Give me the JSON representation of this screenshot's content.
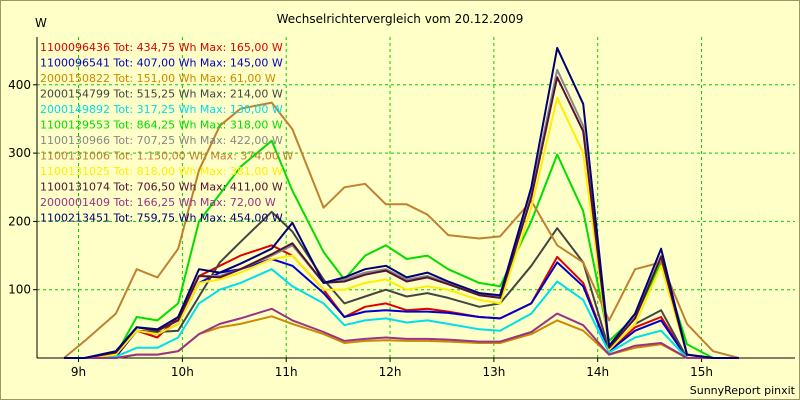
{
  "colors": {
    "background": "#ffffc8",
    "plot_background": "#ffffc8",
    "grid": "#00cc00",
    "axis": "#000000"
  },
  "chart_data": {
    "type": "line",
    "title": "Wechselrichtervergleich vom 20.12.2009",
    "ylabel": "W",
    "xlabel": "",
    "footer": "SunnyReport pinxit",
    "grid": true,
    "legend_placement": "top-left",
    "xlim": [
      8.6,
      15.9
    ],
    "ylim": [
      0,
      470
    ],
    "x_ticks": [
      {
        "value": 9,
        "label": "9h"
      },
      {
        "value": 10,
        "label": "10h"
      },
      {
        "value": 11,
        "label": "11h"
      },
      {
        "value": 12,
        "label": "12h"
      },
      {
        "value": 13,
        "label": "13h"
      },
      {
        "value": 14,
        "label": "14h"
      },
      {
        "value": 15,
        "label": "15h"
      }
    ],
    "y_ticks": [
      {
        "value": 100,
        "label": "100"
      },
      {
        "value": 200,
        "label": "200"
      },
      {
        "value": 300,
        "label": "300"
      },
      {
        "value": 400,
        "label": "400"
      }
    ],
    "x": [
      8.86,
      9.06,
      9.36,
      9.56,
      9.76,
      9.96,
      10.16,
      10.36,
      10.56,
      10.86,
      11.06,
      11.36,
      11.56,
      11.76,
      11.96,
      12.16,
      12.36,
      12.56,
      12.86,
      13.06,
      13.36,
      13.61,
      13.86,
      14.11,
      14.36,
      14.61,
      14.86,
      15.11,
      15.36
    ],
    "series": [
      {
        "name": "1100096436 Tot: 434,75 Wh Max: 165,00 W",
        "color": "#dd0000",
        "values": [
          0,
          0,
          2,
          40,
          30,
          60,
          120,
          135,
          150,
          165,
          150,
          100,
          60,
          75,
          80,
          70,
          72,
          68,
          60,
          58,
          80,
          148,
          110,
          10,
          45,
          60,
          0,
          0,
          0
        ]
      },
      {
        "name": "1100096541 Tot: 407,00 Wh Max: 145,00 W",
        "color": "#0000cc",
        "values": [
          0,
          0,
          2,
          40,
          35,
          50,
          110,
          125,
          130,
          145,
          135,
          95,
          60,
          68,
          70,
          68,
          68,
          66,
          60,
          58,
          80,
          140,
          105,
          10,
          40,
          55,
          0,
          0,
          0
        ]
      },
      {
        "name": "2000150822 Tot: 151,00 Wh Max: 61,00 W",
        "color": "#cc8800",
        "values": [
          0,
          0,
          0,
          5,
          5,
          10,
          35,
          45,
          50,
          61,
          50,
          35,
          22,
          25,
          26,
          25,
          25,
          24,
          22,
          22,
          35,
          55,
          40,
          5,
          15,
          20,
          0,
          0,
          0
        ]
      },
      {
        "name": "2000154799 Tot: 515,25 Wh Max: 214,00 W",
        "color": "#444444",
        "values": [
          0,
          0,
          5,
          40,
          38,
          40,
          90,
          140,
          170,
          214,
          185,
          115,
          80,
          90,
          100,
          90,
          95,
          88,
          75,
          80,
          135,
          190,
          140,
          12,
          50,
          70,
          0,
          0,
          0
        ]
      },
      {
        "name": "2000149892 Tot: 317,25 Wh Max: 130,00 W",
        "color": "#00ddee",
        "values": [
          0,
          0,
          2,
          15,
          15,
          30,
          80,
          100,
          110,
          130,
          105,
          80,
          48,
          55,
          58,
          52,
          55,
          50,
          42,
          40,
          65,
          112,
          85,
          8,
          30,
          40,
          0,
          0,
          0
        ]
      },
      {
        "name": "1100129553 Tot: 864,25 Wh Max: 318,00 W",
        "color": "#00dd00",
        "values": [
          0,
          0,
          5,
          60,
          55,
          80,
          200,
          240,
          280,
          318,
          245,
          155,
          115,
          150,
          165,
          145,
          150,
          130,
          110,
          105,
          200,
          298,
          215,
          25,
          60,
          140,
          20,
          0,
          0
        ]
      },
      {
        "name": "1100130966 Tot: 707,25 Wh Max: 422,00 W",
        "color": "#888888",
        "values": [
          0,
          0,
          10,
          45,
          40,
          55,
          120,
          120,
          130,
          150,
          165,
          110,
          115,
          125,
          130,
          115,
          120,
          110,
          95,
          90,
          240,
          422,
          340,
          15,
          60,
          150,
          5,
          0,
          0
        ]
      },
      {
        "name": "1100131006 Tot: 1.150,00 Wh Max: 374,00 W",
        "color": "#c08030",
        "values": [
          0,
          25,
          65,
          130,
          118,
          160,
          275,
          340,
          365,
          374,
          335,
          220,
          250,
          255,
          225,
          225,
          210,
          180,
          175,
          178,
          230,
          165,
          140,
          55,
          130,
          140,
          50,
          10,
          0
        ]
      },
      {
        "name": "1100131025 Tot: 818,00 Wh Max: 381,00 W",
        "color": "#ffee00",
        "values": [
          0,
          0,
          5,
          40,
          35,
          50,
          110,
          115,
          125,
          145,
          150,
          100,
          100,
          110,
          115,
          100,
          105,
          100,
          85,
          80,
          220,
          381,
          300,
          12,
          50,
          135,
          5,
          0,
          0
        ]
      },
      {
        "name": "1100131074 Tot: 706,50 Wh Max: 411,00 W",
        "color": "#551133",
        "values": [
          0,
          0,
          8,
          45,
          40,
          55,
          120,
          118,
          130,
          152,
          168,
          110,
          112,
          122,
          128,
          112,
          118,
          108,
          92,
          88,
          235,
          411,
          332,
          15,
          58,
          148,
          5,
          0,
          0
        ]
      },
      {
        "name": "2000001409 Tot: 166,25 Wh Max: 72,00 W",
        "color": "#993388",
        "values": [
          0,
          0,
          0,
          5,
          5,
          10,
          35,
          50,
          58,
          72,
          55,
          38,
          25,
          28,
          30,
          28,
          28,
          27,
          24,
          24,
          38,
          65,
          48,
          5,
          18,
          22,
          0,
          0,
          0
        ]
      },
      {
        "name": "1100213451 Tot: 759,75 Wh Max: 454,00 W",
        "color": "#000077",
        "values": [
          0,
          0,
          10,
          45,
          42,
          60,
          130,
          125,
          138,
          160,
          198,
          110,
          118,
          130,
          135,
          118,
          125,
          112,
          95,
          92,
          250,
          454,
          372,
          18,
          65,
          160,
          5,
          0,
          0
        ]
      }
    ]
  }
}
